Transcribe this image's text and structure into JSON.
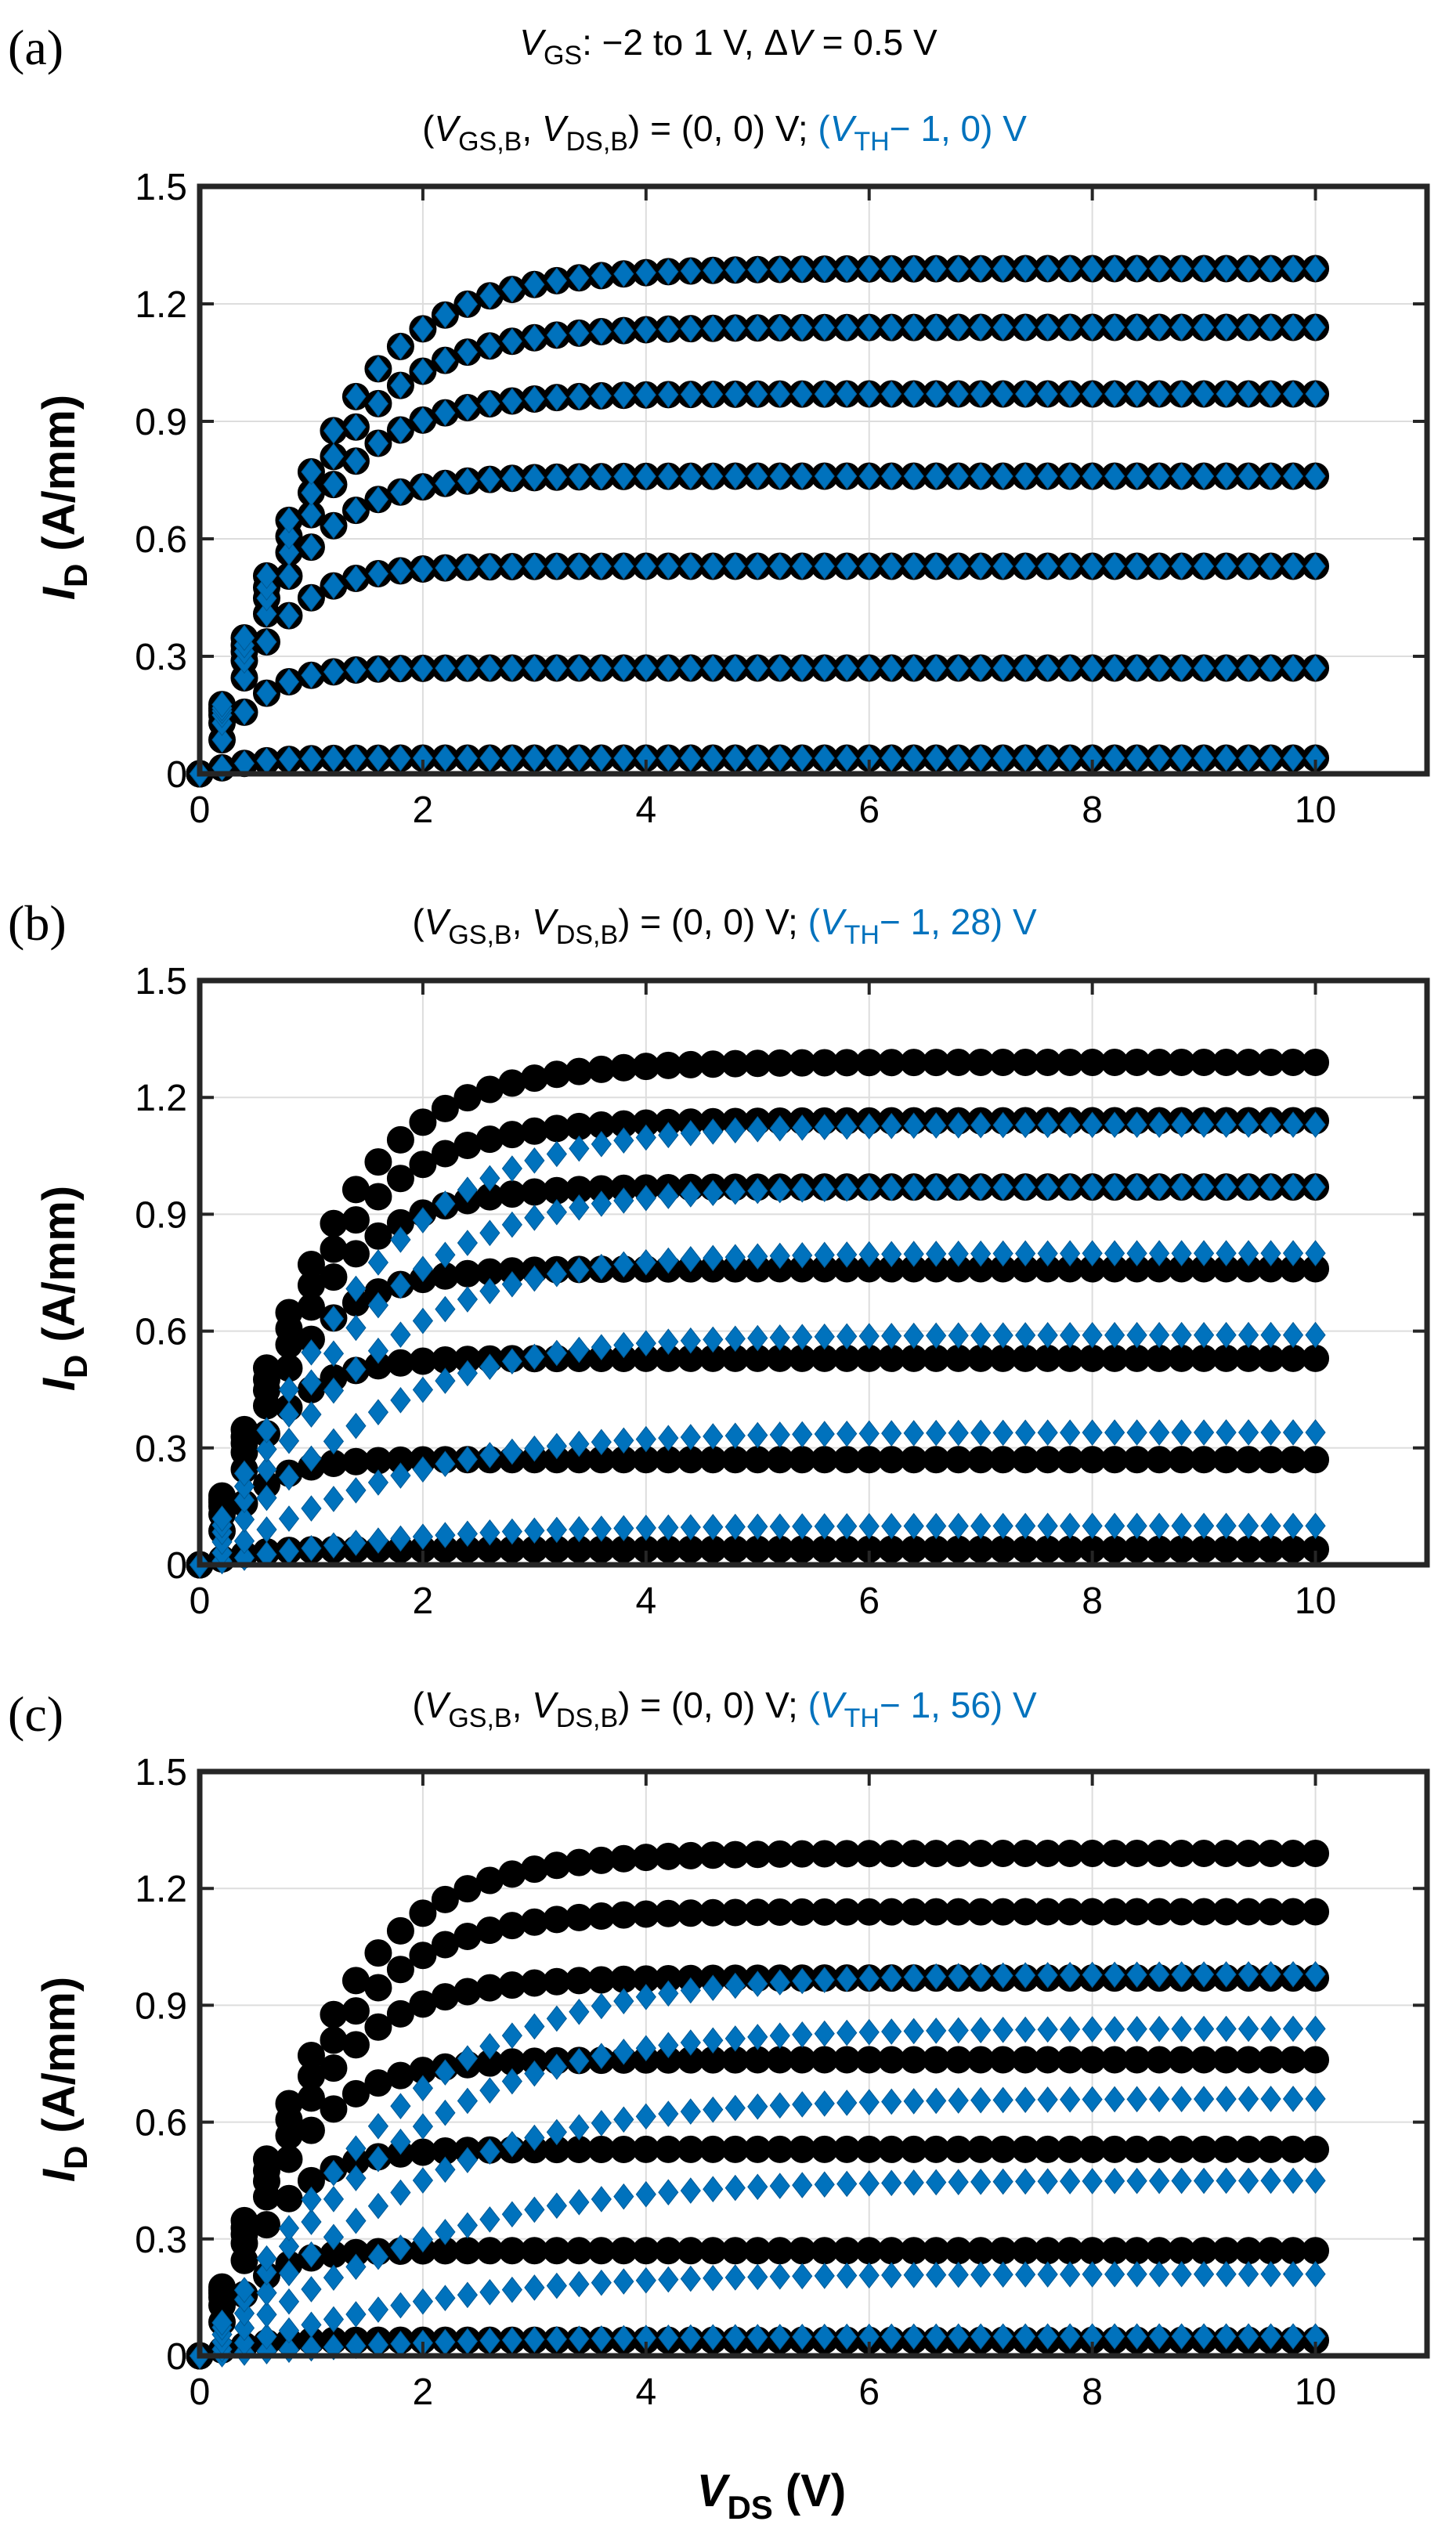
{
  "colors": {
    "black_series": "#000000",
    "blue_series": "#0072BD",
    "grid": "#dddddd",
    "axis": "#262626"
  },
  "header": {
    "sweep_line": {
      "v": "V",
      "gs": "GS",
      "range": ": −2 to 1 V,  ",
      "delta": "Δ",
      "dv": "V",
      "eq": " = 0.5 V"
    }
  },
  "common_label": {
    "open": "(",
    "v1": "V",
    "s1": "GS,B",
    "comma": ", ",
    "v2": "V",
    "s2": "DS,B",
    "close_val": ") = (0, 0) V;  "
  },
  "chart_data": [
    {
      "type": "scatter",
      "panel_label": "(a)",
      "blue_label": {
        "open": "(",
        "v": "V",
        "sub": "TH",
        "rest": "− 1, 0) V"
      },
      "xlabel": "",
      "ylabel": "I_D (A/mm)",
      "xlim": [
        0,
        11
      ],
      "ylim": [
        0,
        1.5
      ],
      "xticks": [
        "0",
        "2",
        "4",
        "6",
        "8",
        "10"
      ],
      "yticks": [
        "0",
        "0.3",
        "0.6",
        "0.9",
        "1.2",
        "1.5"
      ],
      "grid": true,
      "x": "0 to 10 V in 0.2 V steps",
      "series": [
        {
          "name": "(V_GS,B, V_DS,B) = (0, 0) V",
          "marker": "circle",
          "color": "#000000",
          "curves": [
            {
              "vgs": -2.0,
              "isat": 0.04,
              "vk": 0.5
            },
            {
              "vgs": -1.5,
              "isat": 0.27,
              "vk": 0.6
            },
            {
              "vgs": -1.0,
              "isat": 0.53,
              "vk": 0.8
            },
            {
              "vgs": -0.5,
              "isat": 0.76,
              "vk": 1.0
            },
            {
              "vgs": 0.0,
              "isat": 0.97,
              "vk": 1.2
            },
            {
              "vgs": 0.5,
              "isat": 1.14,
              "vk": 1.35
            },
            {
              "vgs": 1.0,
              "isat": 1.29,
              "vk": 1.45
            }
          ]
        },
        {
          "name": "(V_TH − 1, 0) V",
          "marker": "diamond",
          "color": "#0072BD",
          "curves": [
            {
              "vgs": -2.0,
              "isat": 0.04,
              "vk": 0.5
            },
            {
              "vgs": -1.5,
              "isat": 0.27,
              "vk": 0.6
            },
            {
              "vgs": -1.0,
              "isat": 0.53,
              "vk": 0.8
            },
            {
              "vgs": -0.5,
              "isat": 0.76,
              "vk": 1.0
            },
            {
              "vgs": 0.0,
              "isat": 0.97,
              "vk": 1.2
            },
            {
              "vgs": 0.5,
              "isat": 1.14,
              "vk": 1.35
            },
            {
              "vgs": 1.0,
              "isat": 1.29,
              "vk": 1.45
            }
          ]
        }
      ]
    },
    {
      "type": "scatter",
      "panel_label": "(b)",
      "blue_label": {
        "open": "(",
        "v": "V",
        "sub": "TH",
        "rest": "− 1, 28) V"
      },
      "xlabel": "",
      "ylabel": "I_D (A/mm)",
      "xlim": [
        0,
        11
      ],
      "ylim": [
        0,
        1.5
      ],
      "xticks": [
        "0",
        "2",
        "4",
        "6",
        "8",
        "10"
      ],
      "yticks": [
        "0",
        "0.3",
        "0.6",
        "0.9",
        "1.2",
        "1.5"
      ],
      "grid": true,
      "x": "0 to 10 V in 0.2 V steps",
      "series": [
        {
          "name": "(V_GS,B, V_DS,B) = (0, 0) V",
          "marker": "circle",
          "color": "#000000",
          "curves": [
            {
              "vgs": -2.0,
              "isat": 0.04,
              "vk": 0.5
            },
            {
              "vgs": -1.5,
              "isat": 0.27,
              "vk": 0.6
            },
            {
              "vgs": -1.0,
              "isat": 0.53,
              "vk": 0.8
            },
            {
              "vgs": -0.5,
              "isat": 0.76,
              "vk": 1.0
            },
            {
              "vgs": 0.0,
              "isat": 0.97,
              "vk": 1.2
            },
            {
              "vgs": 0.5,
              "isat": 1.14,
              "vk": 1.35
            },
            {
              "vgs": 1.0,
              "isat": 1.29,
              "vk": 1.45
            }
          ]
        },
        {
          "name": "(V_TH − 1, 28) V",
          "marker": "diamond",
          "color": "#0072BD",
          "curves": [
            {
              "vgs": -2.0,
              "isat": 0.1,
              "vk": 2.2
            },
            {
              "vgs": -1.5,
              "isat": 0.34,
              "vk": 2.2
            },
            {
              "vgs": -1.0,
              "isat": 0.59,
              "vk": 2.0
            },
            {
              "vgs": -0.5,
              "isat": 0.8,
              "vk": 1.9
            },
            {
              "vgs": 0.0,
              "isat": 0.97,
              "vk": 1.9
            },
            {
              "vgs": 0.5,
              "isat": 1.13,
              "vk": 1.9
            }
          ]
        }
      ]
    },
    {
      "type": "scatter",
      "panel_label": "(c)",
      "blue_label": {
        "open": "(",
        "v": "V",
        "sub": "TH",
        "rest": "− 1, 56) V"
      },
      "xlabel_parts": {
        "v": "V",
        "sub": "DS",
        "rest": " (V)"
      },
      "ylabel": "I_D (A/mm)",
      "xlim": [
        0,
        11
      ],
      "ylim": [
        0,
        1.5
      ],
      "xticks": [
        "0",
        "2",
        "4",
        "6",
        "8",
        "10"
      ],
      "yticks": [
        "0",
        "0.3",
        "0.6",
        "0.9",
        "1.2",
        "1.5"
      ],
      "grid": true,
      "x": "0 to 10 V in 0.2 V steps",
      "series": [
        {
          "name": "(V_GS,B, V_DS,B) = (0, 0) V",
          "marker": "circle",
          "color": "#000000",
          "curves": [
            {
              "vgs": -2.0,
              "isat": 0.04,
              "vk": 0.5
            },
            {
              "vgs": -1.5,
              "isat": 0.27,
              "vk": 0.6
            },
            {
              "vgs": -1.0,
              "isat": 0.53,
              "vk": 0.8
            },
            {
              "vgs": -0.5,
              "isat": 0.76,
              "vk": 1.0
            },
            {
              "vgs": 0.0,
              "isat": 0.97,
              "vk": 1.2
            },
            {
              "vgs": 0.5,
              "isat": 1.14,
              "vk": 1.35
            },
            {
              "vgs": 1.0,
              "isat": 1.29,
              "vk": 1.45
            }
          ]
        },
        {
          "name": "(V_TH − 1, 56) V",
          "marker": "diamond",
          "color": "#0072BD",
          "curves": [
            {
              "vgs": -2.0,
              "isat": 0.05,
              "vk": 2.5
            },
            {
              "vgs": -1.5,
              "isat": 0.21,
              "vk": 2.5
            },
            {
              "vgs": -1.0,
              "isat": 0.45,
              "vk": 2.5
            },
            {
              "vgs": -0.5,
              "isat": 0.66,
              "vk": 2.4
            },
            {
              "vgs": 0.0,
              "isat": 0.84,
              "vk": 2.3
            },
            {
              "vgs": 0.5,
              "isat": 0.98,
              "vk": 2.3
            }
          ]
        }
      ]
    }
  ]
}
